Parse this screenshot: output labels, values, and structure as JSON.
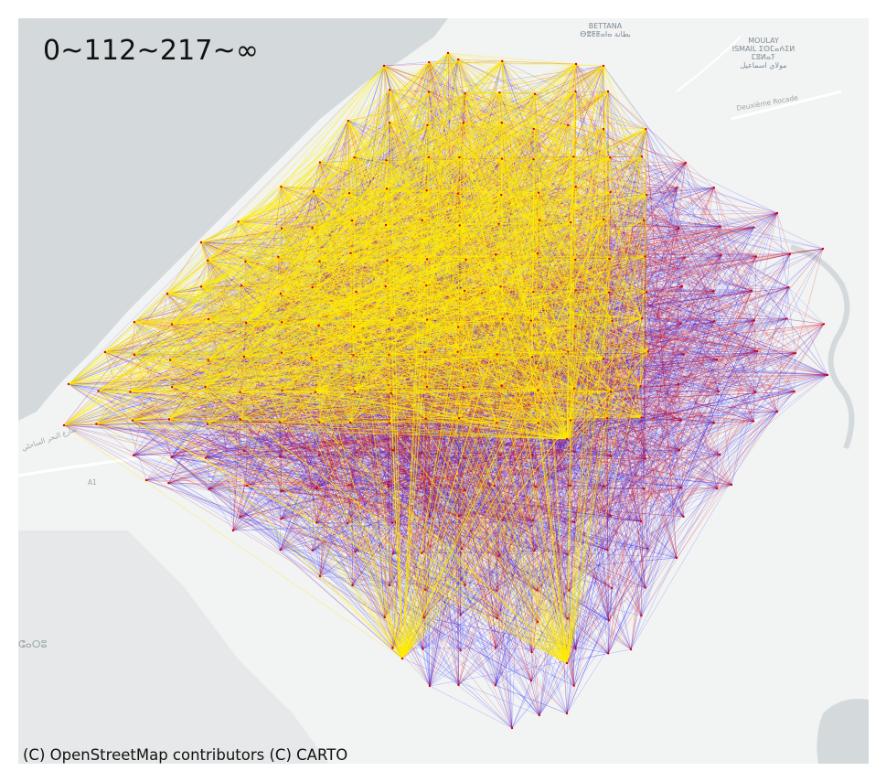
{
  "map": {
    "legend_label": "0~112~217~∞",
    "attribution": "(C) OpenStreetMap contributors (C) CARTO",
    "place_labels": {
      "bettana": "BETTANA",
      "bettana_tifinagh": "ⴱⴻⵟⵟⴰⵏⴰ بطانة",
      "moulay": "MOULAY",
      "ismail": "ISMAIL ⵉⵙⵎⴰⵄⵉⵍ",
      "ismail_tifinagh": "ⵎⵓⵍⴰⵢ",
      "ismail_arabic": "مولاي اسماعيل",
      "deuxieme_rocade": "Deuxième Rocade",
      "road_a1": "A1",
      "coastal_road": "شارع البحر الساحلي",
      "partial_left": "ⵛⴰⵔⵓ"
    },
    "colors": {
      "sea": "#d4dadc",
      "land": "#f2f3f3",
      "low_flow": "#0000ff",
      "mid_flow": "#dd0000",
      "high_flow": "#ffee00"
    },
    "flow_classes": [
      "0~112",
      "112~217",
      "217~∞"
    ]
  }
}
